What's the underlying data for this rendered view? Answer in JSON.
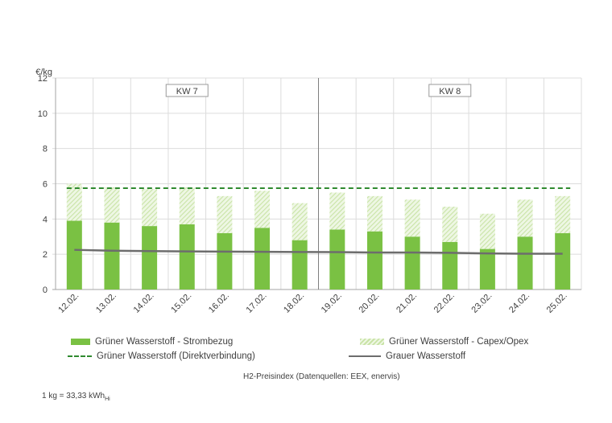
{
  "chart_data": {
    "type": "bar",
    "categories": [
      "12.02.",
      "13.02.",
      "14.02.",
      "15.02.",
      "16.02.",
      "17.02.",
      "18.02.",
      "19.02.",
      "20.02.",
      "21.02.",
      "22.02.",
      "23.02.",
      "24.02.",
      "25.02."
    ],
    "ylabel": "€/kg",
    "ylim": [
      0,
      12
    ],
    "yticks": [
      0,
      2,
      4,
      6,
      8,
      10,
      12
    ],
    "grid": true,
    "stacked": true,
    "series": [
      {
        "name": "Grüner Wasserstoff - Strombezug",
        "kind": "bar",
        "color": "#7ac143",
        "values": [
          3.9,
          3.8,
          3.6,
          3.7,
          3.2,
          3.5,
          2.8,
          3.4,
          3.3,
          3.0,
          2.7,
          2.3,
          3.0,
          3.2
        ]
      },
      {
        "name": "Grüner Wasserstoff - Capex/Opex",
        "kind": "bar-hatched",
        "color": "#c9e3a6",
        "values": [
          2.1,
          2.0,
          2.1,
          2.1,
          2.1,
          2.1,
          2.1,
          2.1,
          2.0,
          2.1,
          2.0,
          2.0,
          2.1,
          2.1
        ]
      },
      {
        "name": "Grüner Wasserstoff (Direktverbindung)",
        "kind": "dashed-line",
        "color": "#2f8a2f",
        "values": [
          5.75,
          5.75,
          5.75,
          5.75,
          5.75,
          5.75,
          5.75,
          5.75,
          5.75,
          5.75,
          5.75,
          5.75,
          5.75,
          5.75
        ]
      },
      {
        "name": "Grauer Wasserstoff",
        "kind": "line",
        "color": "#6d6d6d",
        "values": [
          2.25,
          2.2,
          2.18,
          2.16,
          2.15,
          2.14,
          2.13,
          2.12,
          2.1,
          2.1,
          2.08,
          2.05,
          2.03,
          2.03
        ]
      }
    ],
    "week_labels": [
      {
        "label": "KW 7",
        "from": "12.02.",
        "to": "18.02."
      },
      {
        "label": "KW 8",
        "from": "19.02.",
        "to": "25.02."
      }
    ],
    "caption": "H2-Preisindex (Datenquellen: EEX, enervis)"
  },
  "footnote": {
    "main": "1 kg = 33,33 kWh",
    "sub": "Hi"
  }
}
